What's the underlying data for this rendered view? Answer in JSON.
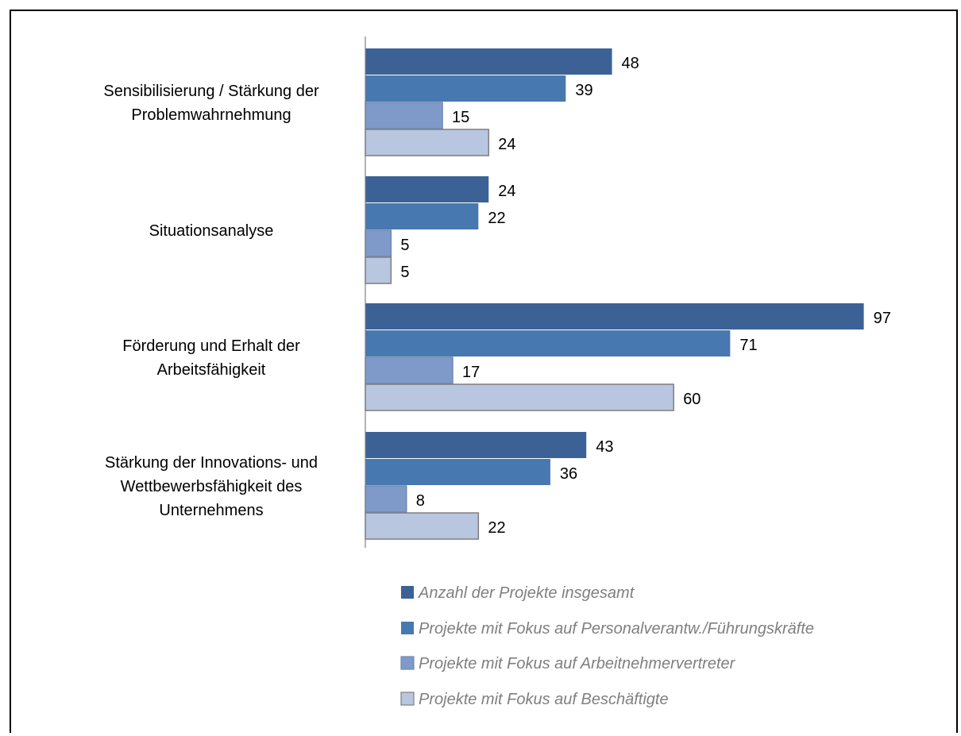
{
  "chart_data": {
    "type": "bar",
    "orientation": "horizontal",
    "categories": [
      [
        "Sensibilisierung / Stärkung der",
        "Problemwahrnehmung"
      ],
      [
        "Situationsanalyse"
      ],
      [
        "Förderung und Erhalt der",
        "Arbeitsfähigkeit"
      ],
      [
        "Stärkung der Innovations-  und",
        "Wettbewerbsfähigkeit des",
        "Unternehmens"
      ]
    ],
    "series": [
      {
        "name": "Anzahl der Projekte insgesamt",
        "color": "#3c6295",
        "values": [
          48,
          24,
          97,
          43
        ]
      },
      {
        "name": "Projekte mit Fokus auf Personalverantw./Führungskräfte",
        "color": "#4878b0",
        "values": [
          39,
          22,
          71,
          36
        ]
      },
      {
        "name": "Projekte mit Fokus auf Arbeitnehmervertreter",
        "color": "#7f9ac8",
        "values": [
          15,
          5,
          17,
          8
        ]
      },
      {
        "name": "Projekte mit Fokus auf Beschäftigte",
        "color": "#b8c6e0",
        "values": [
          24,
          5,
          60,
          22
        ]
      }
    ],
    "xlim": [
      0,
      97
    ],
    "data_labels": true,
    "grid": false,
    "legend_position": "bottom"
  }
}
